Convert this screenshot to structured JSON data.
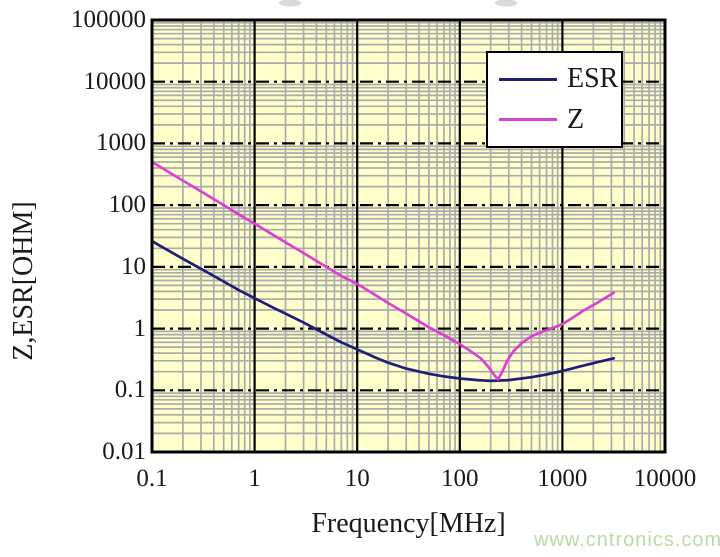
{
  "page": {
    "watermark": "www.cntronics.com"
  },
  "colors": {
    "plot_background": "#ffffcc",
    "minor_grid": "#ababab",
    "major_grid": "#000000",
    "border": "#000000",
    "axis_text": "#1a1a1a",
    "watermark": "#bcd9a6",
    "legend_background": "#ffffff",
    "title_artifact": "#d9d9d9"
  },
  "chart_data": {
    "type": "line",
    "title": "",
    "xlabel": "Frequency[MHz]",
    "ylabel": "Z,ESR[OHM]",
    "x_scale": "log",
    "y_scale": "log",
    "xlim": [
      0.1,
      10000
    ],
    "ylim": [
      0.01,
      100000
    ],
    "x_ticks": [
      "0.1",
      "1",
      "10",
      "100",
      "1000",
      "10000"
    ],
    "y_ticks": [
      "100000",
      "10000",
      "1000",
      "100",
      "10",
      "1",
      "0.1",
      "0.01"
    ],
    "grid": "log minor gridlines gray, major horizontal dashed black, major vertical solid black",
    "legend": {
      "position": "top-right",
      "entries": [
        "ESR",
        "Z"
      ]
    },
    "series": [
      {
        "name": "ESR",
        "color": "#1f1f78",
        "points": [
          [
            0.1,
            26
          ],
          [
            0.2,
            13.5
          ],
          [
            0.3,
            9.3
          ],
          [
            0.5,
            5.8
          ],
          [
            0.7,
            4.2
          ],
          [
            1,
            3.1
          ],
          [
            1.5,
            2.2
          ],
          [
            2,
            1.75
          ],
          [
            3,
            1.25
          ],
          [
            5,
            0.8
          ],
          [
            7,
            0.6
          ],
          [
            10,
            0.46
          ],
          [
            15,
            0.34
          ],
          [
            20,
            0.28
          ],
          [
            30,
            0.225
          ],
          [
            50,
            0.185
          ],
          [
            70,
            0.168
          ],
          [
            100,
            0.155
          ],
          [
            150,
            0.146
          ],
          [
            200,
            0.142
          ],
          [
            300,
            0.146
          ],
          [
            500,
            0.163
          ],
          [
            700,
            0.18
          ],
          [
            1000,
            0.205
          ],
          [
            1500,
            0.245
          ],
          [
            2000,
            0.275
          ],
          [
            2500,
            0.3
          ],
          [
            3160,
            0.33
          ]
        ]
      },
      {
        "name": "Z",
        "color": "#dd3fd3",
        "points": [
          [
            0.1,
            500
          ],
          [
            0.2,
            250
          ],
          [
            0.3,
            167
          ],
          [
            0.5,
            100
          ],
          [
            0.7,
            71
          ],
          [
            1,
            50
          ],
          [
            2,
            25
          ],
          [
            3,
            16.7
          ],
          [
            5,
            10
          ],
          [
            7,
            7.1
          ],
          [
            10,
            5.3
          ],
          [
            15,
            3.5
          ],
          [
            20,
            2.6
          ],
          [
            30,
            1.75
          ],
          [
            50,
            1.05
          ],
          [
            70,
            0.78
          ],
          [
            100,
            0.56
          ],
          [
            130,
            0.42
          ],
          [
            160,
            0.33
          ],
          [
            190,
            0.24
          ],
          [
            215,
            0.18
          ],
          [
            235,
            0.15
          ],
          [
            260,
            0.2
          ],
          [
            290,
            0.3
          ],
          [
            330,
            0.42
          ],
          [
            400,
            0.58
          ],
          [
            500,
            0.75
          ],
          [
            650,
            0.9
          ],
          [
            800,
            1.02
          ],
          [
            1000,
            1.18
          ],
          [
            1300,
            1.55
          ],
          [
            1600,
            1.95
          ],
          [
            2000,
            2.4
          ],
          [
            2500,
            3.0
          ],
          [
            3160,
            3.8
          ]
        ]
      }
    ]
  }
}
